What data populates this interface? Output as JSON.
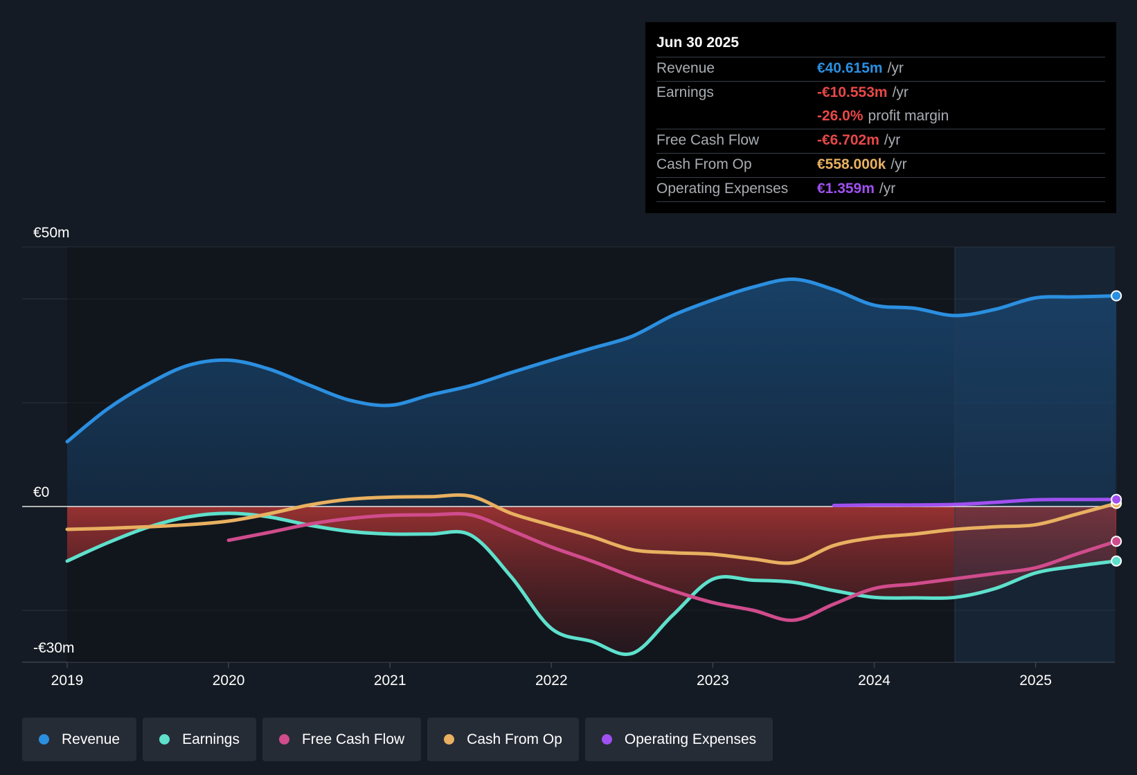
{
  "tooltip": {
    "date": "Jun 30 2025",
    "rows": [
      {
        "label": "Revenue",
        "value": "€40.615m",
        "unit": "/yr",
        "color": "#2b8fe0"
      },
      {
        "label": "Earnings",
        "value": "-€10.553m",
        "unit": "/yr",
        "color": "#e84848"
      },
      {
        "label": "",
        "value": "-26.0%",
        "unit": "profit margin",
        "color": "#e84848"
      },
      {
        "label": "Free Cash Flow",
        "value": "-€6.702m",
        "unit": "/yr",
        "color": "#e84848"
      },
      {
        "label": "Cash From Op",
        "value": "€558.000k",
        "unit": "/yr",
        "color": "#e8b060"
      },
      {
        "label": "Operating Expenses",
        "value": "€1.359m",
        "unit": "/yr",
        "color": "#a050f0"
      }
    ]
  },
  "legend": [
    {
      "label": "Revenue",
      "color": "#2b8fe0"
    },
    {
      "label": "Earnings",
      "color": "#5ee0cc"
    },
    {
      "label": "Free Cash Flow",
      "color": "#d04c8c"
    },
    {
      "label": "Cash From Op",
      "color": "#e8b060"
    },
    {
      "label": "Operating Expenses",
      "color": "#a050f0"
    }
  ],
  "chart_data": {
    "type": "line",
    "title": "",
    "xlabel": "",
    "ylabel": "",
    "xlim": [
      2018.98,
      2025.5
    ],
    "ylim": [
      -30,
      50
    ],
    "y_tick_labels": [
      {
        "value": 50,
        "label": "€50m"
      },
      {
        "value": 0,
        "label": "€0"
      },
      {
        "value": -30,
        "label": "-€30m"
      }
    ],
    "gridlines": [
      50,
      40,
      20,
      0,
      -20
    ],
    "x_ticks": [
      {
        "value": 2019,
        "label": "2019"
      },
      {
        "value": 2020,
        "label": "2020"
      },
      {
        "value": 2021,
        "label": "2021"
      },
      {
        "value": 2022,
        "label": "2022"
      },
      {
        "value": 2023,
        "label": "2023"
      },
      {
        "value": 2024,
        "label": "2024"
      },
      {
        "value": 2025,
        "label": "2025"
      }
    ],
    "highlight_start": 2024.5,
    "series": [
      {
        "name": "Revenue",
        "color": "#2b8fe0",
        "x": [
          2019.0,
          2019.25,
          2019.5,
          2019.75,
          2020.0,
          2020.25,
          2020.5,
          2020.75,
          2021.0,
          2021.25,
          2021.5,
          2021.75,
          2022.0,
          2022.25,
          2022.5,
          2022.75,
          2023.0,
          2023.25,
          2023.5,
          2023.75,
          2024.0,
          2024.25,
          2024.5,
          2024.75,
          2025.0,
          2025.25,
          2025.5
        ],
        "y": [
          12.5,
          18.8,
          23.6,
          27.2,
          28.2,
          26.5,
          23.4,
          20.5,
          19.5,
          21.5,
          23.3,
          25.8,
          28.2,
          30.5,
          32.8,
          36.8,
          39.8,
          42.3,
          43.8,
          41.8,
          38.8,
          38.2,
          36.8,
          38.0,
          40.2,
          40.4,
          40.6
        ]
      },
      {
        "name": "Earnings",
        "color": "#5ee0cc",
        "x": [
          2019.0,
          2019.25,
          2019.5,
          2019.75,
          2020.0,
          2020.25,
          2020.5,
          2020.75,
          2021.0,
          2021.25,
          2021.5,
          2021.75,
          2022.0,
          2022.25,
          2022.5,
          2022.75,
          2023.0,
          2023.25,
          2023.5,
          2023.75,
          2024.0,
          2024.25,
          2024.5,
          2024.75,
          2025.0,
          2025.25,
          2025.5
        ],
        "y": [
          -10.5,
          -7.0,
          -4.0,
          -2.0,
          -1.3,
          -2.0,
          -3.6,
          -4.8,
          -5.3,
          -5.3,
          -5.5,
          -13.5,
          -23.5,
          -26.0,
          -28.3,
          -21.0,
          -14.0,
          -14.2,
          -14.6,
          -16.2,
          -17.5,
          -17.6,
          -17.5,
          -15.8,
          -12.8,
          -11.5,
          -10.5
        ]
      },
      {
        "name": "Free Cash Flow",
        "color": "#d04c8c",
        "x": [
          2020.0,
          2020.25,
          2020.5,
          2020.75,
          2021.0,
          2021.25,
          2021.5,
          2021.75,
          2022.0,
          2022.25,
          2022.5,
          2022.75,
          2023.0,
          2023.25,
          2023.5,
          2023.75,
          2024.0,
          2024.25,
          2024.5,
          2024.75,
          2025.0,
          2025.25,
          2025.5
        ],
        "y": [
          -6.5,
          -5.0,
          -3.4,
          -2.3,
          -1.7,
          -1.6,
          -1.6,
          -4.6,
          -7.8,
          -10.5,
          -13.5,
          -16.2,
          -18.5,
          -20.0,
          -21.9,
          -18.8,
          -15.8,
          -14.9,
          -13.9,
          -12.9,
          -11.8,
          -9.2,
          -6.7
        ]
      },
      {
        "name": "Cash From Op",
        "color": "#e8b060",
        "x": [
          2019.0,
          2019.25,
          2019.5,
          2019.75,
          2020.0,
          2020.25,
          2020.5,
          2020.75,
          2021.0,
          2021.25,
          2021.5,
          2021.75,
          2022.0,
          2022.25,
          2022.5,
          2022.75,
          2023.0,
          2023.25,
          2023.5,
          2023.75,
          2024.0,
          2024.25,
          2024.5,
          2024.75,
          2025.0,
          2025.25,
          2025.5
        ],
        "y": [
          -4.4,
          -4.2,
          -3.9,
          -3.5,
          -2.8,
          -1.4,
          0.3,
          1.4,
          1.8,
          1.9,
          2.0,
          -1.3,
          -3.6,
          -5.8,
          -8.3,
          -8.9,
          -9.2,
          -10.1,
          -10.8,
          -7.5,
          -6.0,
          -5.3,
          -4.4,
          -3.9,
          -3.5,
          -1.5,
          0.6
        ]
      },
      {
        "name": "Operating Expenses",
        "color": "#a050f0",
        "x": [
          2023.75,
          2024.0,
          2024.25,
          2024.5,
          2024.75,
          2025.0,
          2025.25,
          2025.5
        ],
        "y": [
          0.2,
          0.3,
          0.3,
          0.4,
          0.8,
          1.3,
          1.35,
          1.36
        ]
      }
    ]
  }
}
